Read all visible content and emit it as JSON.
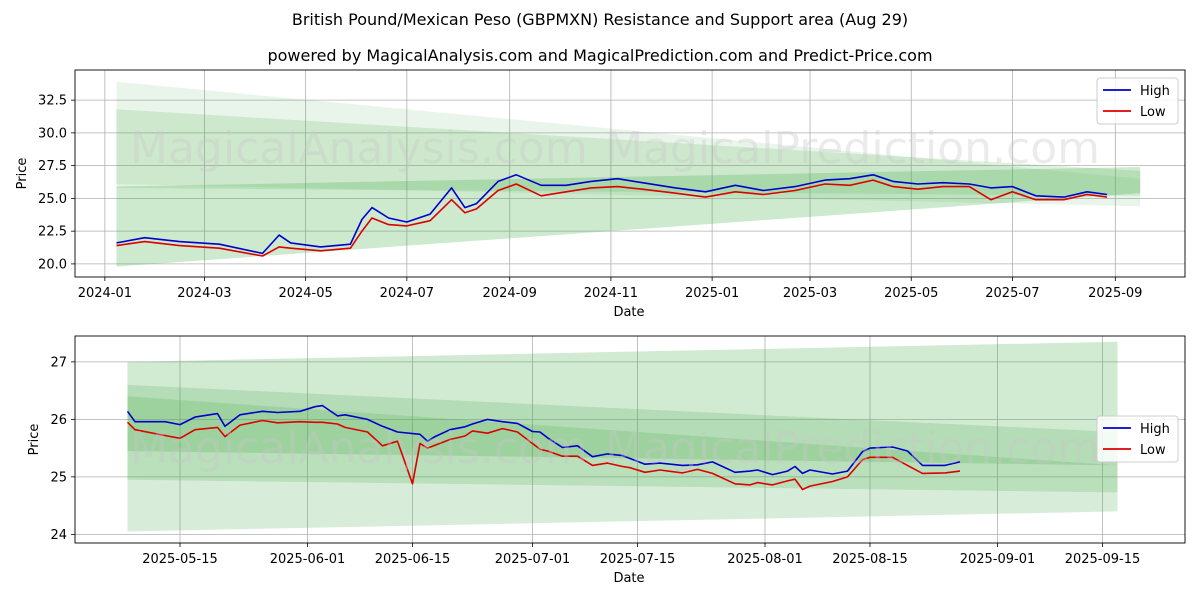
{
  "title": "British Pound/Mexican Peso (GBPMXN) Resistance and Support area (Aug 29)",
  "subtitle": "powered by MagicalAnalysis.com and MagicalPrediction.com and Predict-Price.com",
  "watermarks": [
    "MagicalAnalysis.com",
    "MagicalPrediction.com"
  ],
  "colors": {
    "high": "#0000cc",
    "low": "#dd0000",
    "band": "#4caf50"
  },
  "chart_data": [
    {
      "type": "line",
      "xlabel": "Date",
      "ylabel": "Price",
      "xlim": [
        "2023-12-14",
        "2025-10-13"
      ],
      "ylim": [
        19.0,
        34.8
      ],
      "grid": true,
      "legend": "top-right",
      "x_ticks": [
        "2024-01",
        "2024-03",
        "2024-05",
        "2024-07",
        "2024-09",
        "2024-11",
        "2025-01",
        "2025-03",
        "2025-05",
        "2025-07",
        "2025-09"
      ],
      "y_ticks": [
        "20.0",
        "22.5",
        "25.0",
        "27.5",
        "30.0",
        "32.5"
      ],
      "series": [
        {
          "name": "High",
          "x": [
            "2024-01-08",
            "2024-01-25",
            "2024-02-15",
            "2024-03-10",
            "2024-04-05",
            "2024-04-15",
            "2024-04-22",
            "2024-05-10",
            "2024-05-28",
            "2024-06-04",
            "2024-06-10",
            "2024-06-20",
            "2024-07-01",
            "2024-07-15",
            "2024-07-28",
            "2024-08-05",
            "2024-08-12",
            "2024-08-25",
            "2024-09-05",
            "2024-09-20",
            "2024-10-05",
            "2024-10-20",
            "2024-11-05",
            "2024-11-20",
            "2024-12-10",
            "2024-12-28",
            "2025-01-15",
            "2025-02-01",
            "2025-02-20",
            "2025-03-10",
            "2025-03-25",
            "2025-04-08",
            "2025-04-20",
            "2025-05-05",
            "2025-05-20",
            "2025-06-05",
            "2025-06-18",
            "2025-07-01",
            "2025-07-15",
            "2025-08-01",
            "2025-08-15",
            "2025-08-27"
          ],
          "values": [
            21.6,
            22.0,
            21.7,
            21.5,
            20.8,
            22.2,
            21.6,
            21.3,
            21.5,
            23.4,
            24.3,
            23.5,
            23.2,
            23.8,
            25.8,
            24.3,
            24.6,
            26.3,
            26.8,
            26.0,
            26.0,
            26.3,
            26.5,
            26.2,
            25.8,
            25.5,
            26.0,
            25.6,
            25.9,
            26.4,
            26.5,
            26.8,
            26.3,
            26.1,
            26.2,
            26.1,
            25.8,
            25.9,
            25.2,
            25.1,
            25.5,
            25.3
          ]
        },
        {
          "name": "Low",
          "x": [
            "2024-01-08",
            "2024-01-25",
            "2024-02-15",
            "2024-03-10",
            "2024-04-05",
            "2024-04-15",
            "2024-04-22",
            "2024-05-10",
            "2024-05-28",
            "2024-06-04",
            "2024-06-10",
            "2024-06-20",
            "2024-07-01",
            "2024-07-15",
            "2024-07-28",
            "2024-08-05",
            "2024-08-12",
            "2024-08-25",
            "2024-09-05",
            "2024-09-20",
            "2024-10-05",
            "2024-10-20",
            "2024-11-05",
            "2024-11-20",
            "2024-12-10",
            "2024-12-28",
            "2025-01-15",
            "2025-02-01",
            "2025-02-20",
            "2025-03-10",
            "2025-03-25",
            "2025-04-08",
            "2025-04-20",
            "2025-05-05",
            "2025-05-20",
            "2025-06-05",
            "2025-06-18",
            "2025-07-01",
            "2025-07-15",
            "2025-08-01",
            "2025-08-15",
            "2025-08-27"
          ],
          "values": [
            21.4,
            21.7,
            21.4,
            21.2,
            20.6,
            21.3,
            21.2,
            21.0,
            21.2,
            22.5,
            23.5,
            23.0,
            22.9,
            23.3,
            24.9,
            23.9,
            24.2,
            25.6,
            26.1,
            25.2,
            25.5,
            25.8,
            25.9,
            25.7,
            25.4,
            25.1,
            25.5,
            25.3,
            25.6,
            26.1,
            26.0,
            26.4,
            25.9,
            25.7,
            25.9,
            25.9,
            24.9,
            25.5,
            24.9,
            24.9,
            25.3,
            25.1
          ]
        }
      ],
      "bands": [
        {
          "x": [
            "2024-01-08",
            "2025-09-16"
          ],
          "upper": [
            33.9,
            26.5
          ],
          "lower": [
            26.1,
            24.4
          ]
        },
        {
          "x": [
            "2024-01-08",
            "2025-09-16"
          ],
          "upper": [
            31.8,
            27.1
          ],
          "lower": [
            25.8,
            25.2
          ]
        },
        {
          "x": [
            "2024-01-08",
            "2025-09-16"
          ],
          "upper": [
            25.9,
            27.4
          ],
          "lower": [
            19.8,
            25.4
          ]
        }
      ]
    },
    {
      "type": "line",
      "xlabel": "Date",
      "ylabel": "Price",
      "xlim": [
        "2025-05-01",
        "2025-09-26"
      ],
      "ylim": [
        23.85,
        27.45
      ],
      "grid": true,
      "legend": "center-right",
      "x_ticks": [
        "2025-05-15",
        "2025-06-01",
        "2025-06-15",
        "2025-07-01",
        "2025-07-15",
        "2025-08-01",
        "2025-08-15",
        "2025-09-01",
        "2025-09-15"
      ],
      "y_ticks": [
        "24",
        "25",
        "26",
        "27"
      ],
      "series": [
        {
          "name": "High",
          "x": [
            "2025-05-08",
            "2025-05-09",
            "2025-05-13",
            "2025-05-15",
            "2025-05-17",
            "2025-05-20",
            "2025-05-21",
            "2025-05-23",
            "2025-05-26",
            "2025-05-28",
            "2025-05-31",
            "2025-06-02",
            "2025-06-03",
            "2025-06-05",
            "2025-06-06",
            "2025-06-09",
            "2025-06-11",
            "2025-06-13",
            "2025-06-16",
            "2025-06-17",
            "2025-06-18",
            "2025-06-20",
            "2025-06-22",
            "2025-06-23",
            "2025-06-25",
            "2025-06-27",
            "2025-06-29",
            "2025-07-01",
            "2025-07-02",
            "2025-07-03",
            "2025-07-05",
            "2025-07-07",
            "2025-07-09",
            "2025-07-11",
            "2025-07-13",
            "2025-07-14",
            "2025-07-16",
            "2025-07-18",
            "2025-07-21",
            "2025-07-23",
            "2025-07-25",
            "2025-07-28",
            "2025-07-30",
            "2025-07-31",
            "2025-08-02",
            "2025-08-04",
            "2025-08-05",
            "2025-08-06",
            "2025-08-07",
            "2025-08-10",
            "2025-08-12",
            "2025-08-14",
            "2025-08-15",
            "2025-08-18",
            "2025-08-20",
            "2025-08-22",
            "2025-08-25",
            "2025-08-27"
          ],
          "values": [
            26.14,
            25.96,
            25.96,
            25.91,
            26.04,
            26.1,
            25.88,
            26.08,
            26.14,
            26.12,
            26.14,
            26.22,
            26.24,
            26.06,
            26.08,
            26.0,
            25.88,
            25.78,
            25.74,
            25.62,
            25.7,
            25.82,
            25.87,
            25.92,
            26.0,
            25.96,
            25.93,
            25.79,
            25.78,
            25.68,
            25.51,
            25.54,
            25.35,
            25.4,
            25.37,
            25.32,
            25.22,
            25.24,
            25.2,
            25.21,
            25.26,
            25.08,
            25.1,
            25.12,
            25.04,
            25.1,
            25.18,
            25.06,
            25.12,
            25.05,
            25.1,
            25.44,
            25.5,
            25.52,
            25.45,
            25.2,
            25.2,
            25.26
          ]
        },
        {
          "name": "Low",
          "x": [
            "2025-05-08",
            "2025-05-09",
            "2025-05-13",
            "2025-05-15",
            "2025-05-17",
            "2025-05-20",
            "2025-05-21",
            "2025-05-23",
            "2025-05-26",
            "2025-05-28",
            "2025-05-31",
            "2025-06-02",
            "2025-06-03",
            "2025-06-05",
            "2025-06-06",
            "2025-06-09",
            "2025-06-11",
            "2025-06-13",
            "2025-06-15",
            "2025-06-16",
            "2025-06-17",
            "2025-06-18",
            "2025-06-20",
            "2025-06-22",
            "2025-06-23",
            "2025-06-25",
            "2025-06-27",
            "2025-06-29",
            "2025-07-01",
            "2025-07-02",
            "2025-07-03",
            "2025-07-05",
            "2025-07-07",
            "2025-07-09",
            "2025-07-11",
            "2025-07-13",
            "2025-07-14",
            "2025-07-16",
            "2025-07-18",
            "2025-07-21",
            "2025-07-23",
            "2025-07-25",
            "2025-07-28",
            "2025-07-30",
            "2025-07-31",
            "2025-08-02",
            "2025-08-04",
            "2025-08-05",
            "2025-08-06",
            "2025-08-07",
            "2025-08-10",
            "2025-08-12",
            "2025-08-14",
            "2025-08-15",
            "2025-08-18",
            "2025-08-20",
            "2025-08-22",
            "2025-08-25",
            "2025-08-27"
          ],
          "values": [
            25.95,
            25.82,
            25.72,
            25.67,
            25.82,
            25.86,
            25.7,
            25.9,
            25.98,
            25.94,
            25.96,
            25.95,
            25.95,
            25.92,
            25.86,
            25.78,
            25.54,
            25.62,
            24.88,
            25.58,
            25.5,
            25.55,
            25.65,
            25.71,
            25.8,
            25.76,
            25.84,
            25.78,
            25.58,
            25.48,
            25.45,
            25.36,
            25.36,
            25.2,
            25.24,
            25.18,
            25.16,
            25.08,
            25.12,
            25.07,
            25.13,
            25.06,
            24.88,
            24.86,
            24.9,
            24.86,
            24.93,
            24.96,
            24.78,
            24.84,
            24.92,
            25.0,
            25.3,
            25.34,
            25.34,
            25.2,
            25.06,
            25.07,
            25.1
          ]
        }
      ],
      "bands": [
        {
          "x": [
            "2025-05-08",
            "2025-09-17"
          ],
          "upper": [
            26.4,
            25.2
          ],
          "lower": [
            24.95,
            24.73
          ]
        },
        {
          "x": [
            "2025-05-08",
            "2025-09-17"
          ],
          "upper": [
            26.6,
            25.78
          ],
          "lower": [
            24.05,
            24.4
          ]
        },
        {
          "x": [
            "2025-05-08",
            "2025-09-17"
          ],
          "upper": [
            27.0,
            27.35
          ],
          "lower": [
            25.45,
            25.2
          ]
        }
      ]
    }
  ]
}
